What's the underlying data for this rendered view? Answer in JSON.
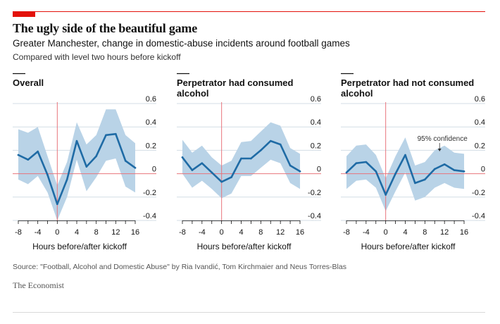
{
  "header": {
    "title": "The ugly side of the beautiful game",
    "subtitle": "Greater Manchester, change in domestic-abuse incidents around football games",
    "note": "Compared with level two hours before kickoff"
  },
  "footer": {
    "source": "Source: \"Football, Alcohol and Domestic Abuse\" by Ria Ivandić, Tom Kirchmaier and Neus Torres-Blas",
    "brand": "The Economist"
  },
  "colors": {
    "line": "#1f6ba5",
    "band": "#b9d3e7",
    "zero_line": "#e8747c",
    "grid": "#d3dde6",
    "accent": "#e3120b"
  },
  "chart_data": [
    {
      "type": "line",
      "title": "Overall",
      "xlabel": "Hours before/after kickoff",
      "ylabel": "",
      "x": [
        -8,
        -6,
        -4,
        -2,
        0,
        2,
        4,
        6,
        8,
        10,
        12,
        14,
        16
      ],
      "x_ticks": [
        -8,
        -4,
        0,
        4,
        8,
        12,
        16
      ],
      "y_ticks": [
        0.6,
        0.4,
        0.2,
        0,
        -0.2,
        -0.4
      ],
      "ylim": [
        -0.4,
        0.6
      ],
      "values": [
        0.16,
        0.12,
        0.19,
        -0.01,
        -0.26,
        -0.05,
        0.28,
        0.06,
        0.15,
        0.33,
        0.34,
        0.11,
        0.05
      ],
      "upper": [
        0.38,
        0.35,
        0.4,
        0.15,
        -0.1,
        0.1,
        0.44,
        0.25,
        0.33,
        0.55,
        0.55,
        0.33,
        0.26
      ],
      "lower": [
        -0.05,
        -0.09,
        -0.02,
        -0.16,
        -0.4,
        -0.2,
        0.12,
        -0.15,
        -0.03,
        0.11,
        0.13,
        -0.11,
        -0.16
      ],
      "grid": true,
      "annotation": ""
    },
    {
      "type": "line",
      "title": "Perpetrator had consumed alcohol",
      "xlabel": "Hours before/after kickoff",
      "ylabel": "",
      "x": [
        -8,
        -6,
        -4,
        -2,
        0,
        2,
        4,
        6,
        8,
        10,
        12,
        14,
        16
      ],
      "x_ticks": [
        -8,
        -4,
        0,
        4,
        8,
        12,
        16
      ],
      "y_ticks": [
        0.6,
        0.4,
        0.2,
        0,
        -0.2,
        -0.4
      ],
      "ylim": [
        -0.4,
        0.6
      ],
      "values": [
        0.14,
        0.03,
        0.09,
        0.01,
        -0.07,
        -0.03,
        0.13,
        0.13,
        0.2,
        0.28,
        0.25,
        0.07,
        0.02
      ],
      "upper": [
        0.29,
        0.18,
        0.24,
        0.14,
        0.07,
        0.11,
        0.27,
        0.28,
        0.36,
        0.44,
        0.41,
        0.22,
        0.17
      ],
      "lower": [
        0.0,
        -0.12,
        -0.06,
        -0.13,
        -0.21,
        -0.17,
        -0.02,
        -0.02,
        0.05,
        0.12,
        0.09,
        -0.08,
        -0.13
      ],
      "grid": true,
      "annotation": ""
    },
    {
      "type": "line",
      "title": "Perpetrator had not consumed alcohol",
      "xlabel": "Hours before/after kickoff",
      "ylabel": "",
      "x": [
        -8,
        -6,
        -4,
        -2,
        0,
        2,
        4,
        6,
        8,
        10,
        12,
        14,
        16
      ],
      "x_ticks": [
        -8,
        -4,
        0,
        4,
        8,
        12,
        16
      ],
      "y_ticks": [
        0.6,
        0.4,
        0.2,
        0,
        -0.2,
        -0.4
      ],
      "ylim": [
        -0.4,
        0.6
      ],
      "values": [
        0.01,
        0.09,
        0.1,
        0.02,
        -0.18,
        0.0,
        0.16,
        -0.08,
        -0.05,
        0.04,
        0.08,
        0.03,
        0.02
      ],
      "upper": [
        0.15,
        0.24,
        0.25,
        0.16,
        -0.04,
        0.15,
        0.31,
        0.07,
        0.1,
        0.2,
        0.24,
        0.18,
        0.17
      ],
      "lower": [
        -0.13,
        -0.06,
        -0.05,
        -0.12,
        -0.32,
        -0.15,
        0.01,
        -0.23,
        -0.2,
        -0.12,
        -0.08,
        -0.12,
        -0.13
      ],
      "grid": true,
      "annotation": "95% confidence"
    }
  ]
}
